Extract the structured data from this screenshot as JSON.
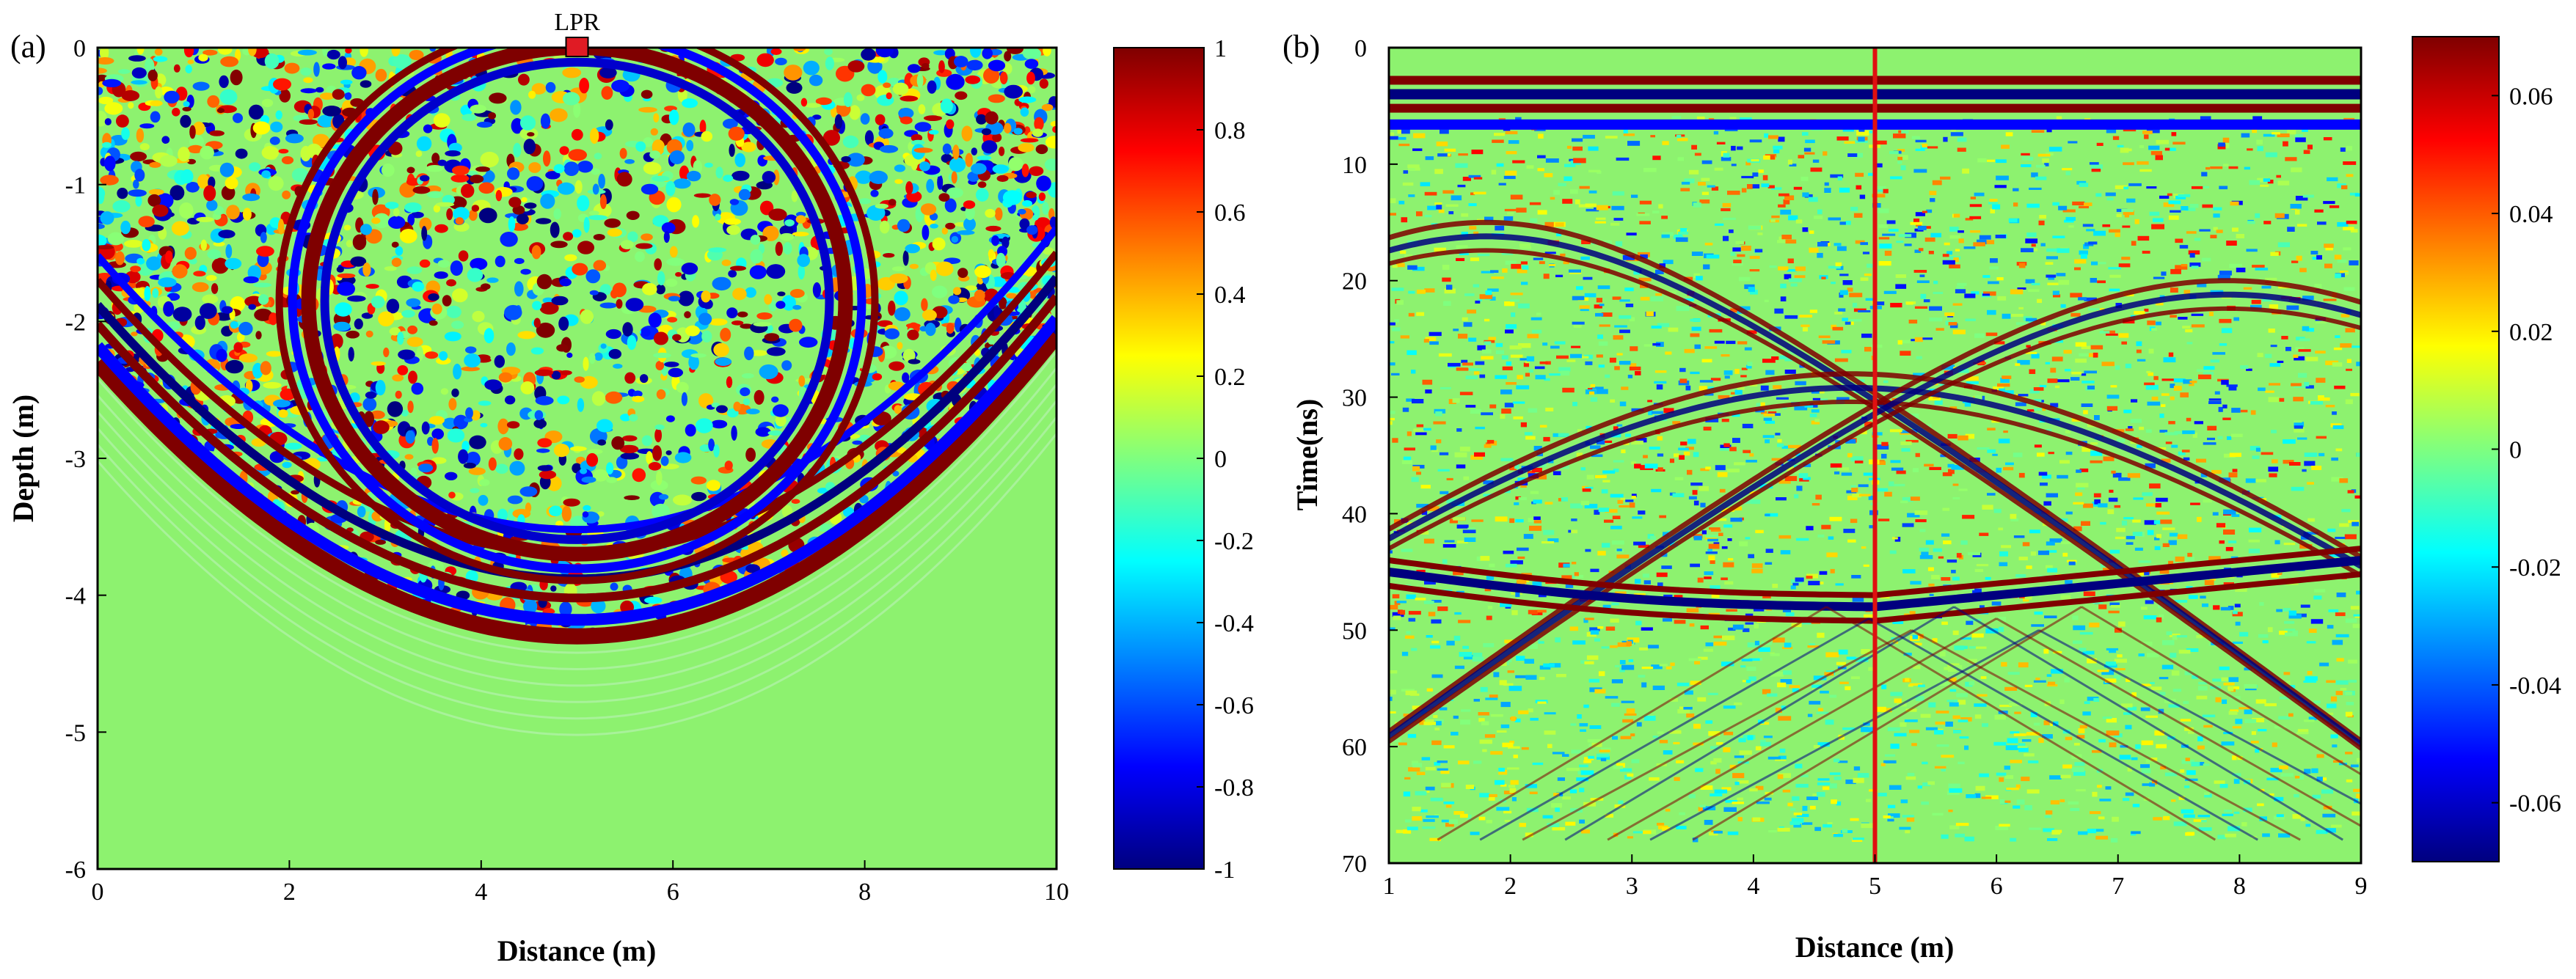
{
  "figure": {
    "panel_a_label": "(a)",
    "panel_b_label": "(b)"
  },
  "colors": {
    "background_green": "#8df26f",
    "marker_red": "#e01b24",
    "trace_line_red": "#e01010"
  },
  "colormap": [
    "#00007f",
    "#0000ff",
    "#007fff",
    "#00ffff",
    "#7fff7f",
    "#ffff00",
    "#ff7f00",
    "#ff0000",
    "#7f0000"
  ],
  "chart_data": [
    {
      "type": "heatmap",
      "panel": "(a)",
      "title": "",
      "xlabel": "Distance (m)",
      "ylabel": "Depth (m)",
      "xlim": [
        0,
        10
      ],
      "ylim": [
        -6,
        0
      ],
      "xticks": [
        "0",
        "2",
        "4",
        "6",
        "8",
        "10"
      ],
      "yticks": [
        "0",
        "-1",
        "-2",
        "-3",
        "-4",
        "-5",
        "-6"
      ],
      "marker": {
        "label": "LPR",
        "x": 5,
        "y": 0
      },
      "colorbar": {
        "min": -1,
        "max": 1,
        "ticks": [
          "1",
          "0.8",
          "0.6",
          "0.4",
          "0.2",
          "0",
          "-0.2",
          "-0.4",
          "-0.6",
          "-0.8",
          "-1"
        ]
      },
      "features": [
        {
          "name": "wavefront-bowl",
          "center_x": 5,
          "bottom_depth": -4.3,
          "edge_depth_at_x0": -2.3,
          "edge_depth_at_x10": -2.1
        },
        {
          "name": "ellipse-reflector",
          "center_x": 5,
          "top_depth": 0,
          "bottom_depth": -3.7,
          "half_width": 2.8
        }
      ]
    },
    {
      "type": "heatmap",
      "panel": "(b)",
      "title": "",
      "xlabel": "Distance (m)",
      "ylabel": "Time(ns)",
      "xlim": [
        1,
        9
      ],
      "ylim": [
        70,
        0
      ],
      "xticks": [
        "1",
        "2",
        "3",
        "4",
        "5",
        "6",
        "7",
        "8",
        "9"
      ],
      "yticks": [
        "0",
        "10",
        "20",
        "30",
        "40",
        "50",
        "60",
        "70"
      ],
      "trace_line_x": 5,
      "colorbar": {
        "min": -0.07,
        "max": 0.07,
        "ticks": [
          "0.06",
          "0.04",
          "0.02",
          "0",
          "-0.02",
          "-0.04",
          "-0.06"
        ]
      },
      "hyperbolas": [
        {
          "apex_x": 1.8,
          "apex_t": 15
        },
        {
          "apex_x": 4.8,
          "apex_t": 28
        },
        {
          "apex_x": 7.9,
          "apex_t": 20
        }
      ],
      "layers": [
        {
          "name": "direct-wave",
          "t": 4
        },
        {
          "name": "bottom-interface",
          "t_at_x1": 45,
          "t_at_x5": 48,
          "t_at_x9": 44
        }
      ]
    }
  ]
}
